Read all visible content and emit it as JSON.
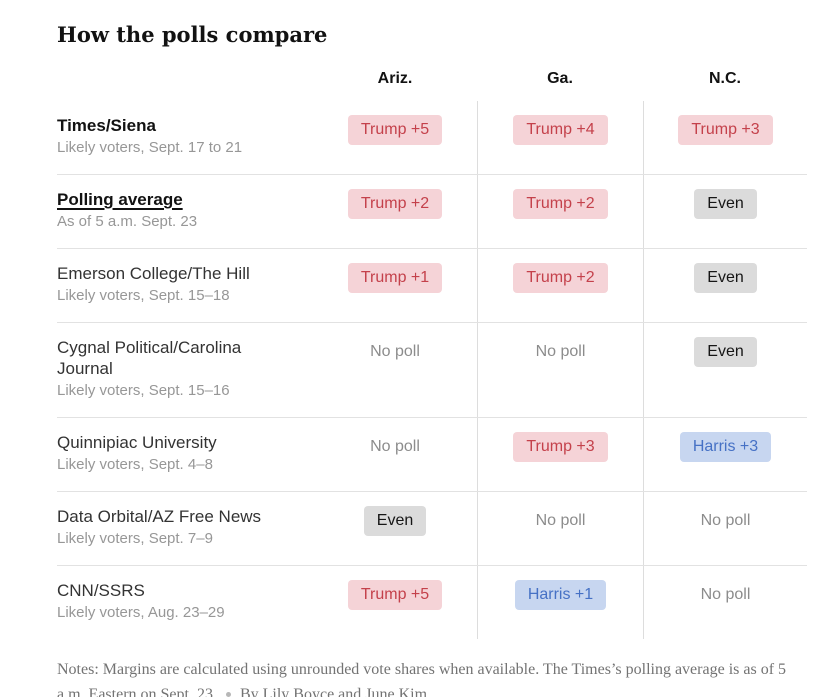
{
  "title": "How the polls compare",
  "columns": [
    "Ariz.",
    "Ga.",
    "N.C."
  ],
  "rows": [
    {
      "name": "Times/Siena",
      "detail": "Likely voters, Sept. 17 to 21",
      "style": "bold",
      "cells": [
        {
          "label": "Trump +5",
          "type": "trump"
        },
        {
          "label": "Trump +4",
          "type": "trump"
        },
        {
          "label": "Trump +3",
          "type": "trump"
        }
      ]
    },
    {
      "name": "Polling average",
      "detail": "As of 5 a.m. Sept. 23",
      "style": "bold-underline",
      "cells": [
        {
          "label": "Trump +2",
          "type": "trump"
        },
        {
          "label": "Trump +2",
          "type": "trump"
        },
        {
          "label": "Even",
          "type": "even"
        }
      ]
    },
    {
      "name": "Emerson College/The Hill",
      "detail": "Likely voters, Sept. 15–18",
      "style": "normal",
      "cells": [
        {
          "label": "Trump +1",
          "type": "trump"
        },
        {
          "label": "Trump +2",
          "type": "trump"
        },
        {
          "label": "Even",
          "type": "even"
        }
      ]
    },
    {
      "name": "Cygnal Political/Carolina Journal",
      "detail": "Likely voters, Sept. 15–16",
      "style": "normal",
      "cells": [
        {
          "label": "No poll",
          "type": "none"
        },
        {
          "label": "No poll",
          "type": "none"
        },
        {
          "label": "Even",
          "type": "even"
        }
      ]
    },
    {
      "name": "Quinnipiac University",
      "detail": "Likely voters, Sept. 4–8",
      "style": "normal",
      "cells": [
        {
          "label": "No poll",
          "type": "none"
        },
        {
          "label": "Trump +3",
          "type": "trump"
        },
        {
          "label": "Harris +3",
          "type": "harris"
        }
      ]
    },
    {
      "name": "Data Orbital/AZ Free News",
      "detail": "Likely voters, Sept. 7–9",
      "style": "normal",
      "cells": [
        {
          "label": "Even",
          "type": "even"
        },
        {
          "label": "No poll",
          "type": "none"
        },
        {
          "label": "No poll",
          "type": "none"
        }
      ]
    },
    {
      "name": "CNN/SSRS",
      "detail": "Likely voters, Aug. 23–29",
      "style": "normal",
      "cells": [
        {
          "label": "Trump +5",
          "type": "trump"
        },
        {
          "label": "Harris +1",
          "type": "harris"
        },
        {
          "label": "No poll",
          "type": "none"
        }
      ]
    }
  ],
  "notes": {
    "text": "Notes: Margins are calculated using unrounded vote shares when available. The Times’s polling average is as of 5 a.m. Eastern on Sept. 23.",
    "byline": "By Lily Boyce and June Kim"
  },
  "colors": {
    "trump_bg": "#f5d3d7",
    "trump_text": "#c4414b",
    "harris_bg": "#c7d6f0",
    "harris_text": "#4671c5",
    "even_bg": "#dbdbdb",
    "even_text": "#161616",
    "no_poll_text": "#8c8c8c"
  },
  "chart_data": {
    "type": "table",
    "title": "How the polls compare",
    "columns": [
      "Ariz.",
      "Ga.",
      "N.C."
    ],
    "rows": [
      {
        "label": "Times/Siena",
        "sublabel": "Likely voters, Sept. 17 to 21",
        "values": [
          "Trump +5",
          "Trump +4",
          "Trump +3"
        ]
      },
      {
        "label": "Polling average",
        "sublabel": "As of 5 a.m. Sept. 23",
        "values": [
          "Trump +2",
          "Trump +2",
          "Even"
        ]
      },
      {
        "label": "Emerson College/The Hill",
        "sublabel": "Likely voters, Sept. 15–18",
        "values": [
          "Trump +1",
          "Trump +2",
          "Even"
        ]
      },
      {
        "label": "Cygnal Political/Carolina Journal",
        "sublabel": "Likely voters, Sept. 15–16",
        "values": [
          "No poll",
          "No poll",
          "Even"
        ]
      },
      {
        "label": "Quinnipiac University",
        "sublabel": "Likely voters, Sept. 4–8",
        "values": [
          "No poll",
          "Trump +3",
          "Harris +3"
        ]
      },
      {
        "label": "Data Orbital/AZ Free News",
        "sublabel": "Likely voters, Sept. 7–9",
        "values": [
          "Even",
          "No poll",
          "No poll"
        ]
      },
      {
        "label": "CNN/SSRS",
        "sublabel": "Likely voters, Aug. 23–29",
        "values": [
          "Trump +5",
          "Harris +1",
          "No poll"
        ]
      }
    ]
  }
}
